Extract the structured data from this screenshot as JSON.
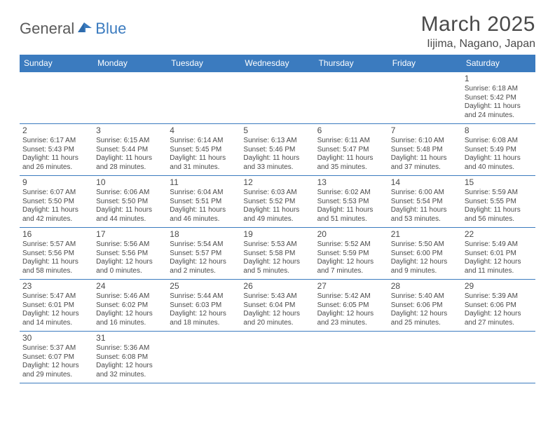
{
  "logo": {
    "text1": "General",
    "text2": "Blue"
  },
  "title": "March 2025",
  "location": "Iijima, Nagano, Japan",
  "colors": {
    "header_bg": "#3b7bbf",
    "header_fg": "#ffffff",
    "border": "#3b7bbf",
    "text": "#4a4a4a",
    "bg": "#ffffff"
  },
  "fonts": {
    "title_size": 30,
    "location_size": 16,
    "dayhead_size": 12,
    "daynum_size": 12,
    "cell_size": 10
  },
  "columns": [
    "Sunday",
    "Monday",
    "Tuesday",
    "Wednesday",
    "Thursday",
    "Friday",
    "Saturday"
  ],
  "weeks": [
    [
      null,
      null,
      null,
      null,
      null,
      null,
      {
        "n": "1",
        "sunrise": "6:18 AM",
        "sunset": "5:42 PM",
        "dl": "11 hours and 24 minutes."
      }
    ],
    [
      {
        "n": "2",
        "sunrise": "6:17 AM",
        "sunset": "5:43 PM",
        "dl": "11 hours and 26 minutes."
      },
      {
        "n": "3",
        "sunrise": "6:15 AM",
        "sunset": "5:44 PM",
        "dl": "11 hours and 28 minutes."
      },
      {
        "n": "4",
        "sunrise": "6:14 AM",
        "sunset": "5:45 PM",
        "dl": "11 hours and 31 minutes."
      },
      {
        "n": "5",
        "sunrise": "6:13 AM",
        "sunset": "5:46 PM",
        "dl": "11 hours and 33 minutes."
      },
      {
        "n": "6",
        "sunrise": "6:11 AM",
        "sunset": "5:47 PM",
        "dl": "11 hours and 35 minutes."
      },
      {
        "n": "7",
        "sunrise": "6:10 AM",
        "sunset": "5:48 PM",
        "dl": "11 hours and 37 minutes."
      },
      {
        "n": "8",
        "sunrise": "6:08 AM",
        "sunset": "5:49 PM",
        "dl": "11 hours and 40 minutes."
      }
    ],
    [
      {
        "n": "9",
        "sunrise": "6:07 AM",
        "sunset": "5:50 PM",
        "dl": "11 hours and 42 minutes."
      },
      {
        "n": "10",
        "sunrise": "6:06 AM",
        "sunset": "5:50 PM",
        "dl": "11 hours and 44 minutes."
      },
      {
        "n": "11",
        "sunrise": "6:04 AM",
        "sunset": "5:51 PM",
        "dl": "11 hours and 46 minutes."
      },
      {
        "n": "12",
        "sunrise": "6:03 AM",
        "sunset": "5:52 PM",
        "dl": "11 hours and 49 minutes."
      },
      {
        "n": "13",
        "sunrise": "6:02 AM",
        "sunset": "5:53 PM",
        "dl": "11 hours and 51 minutes."
      },
      {
        "n": "14",
        "sunrise": "6:00 AM",
        "sunset": "5:54 PM",
        "dl": "11 hours and 53 minutes."
      },
      {
        "n": "15",
        "sunrise": "5:59 AM",
        "sunset": "5:55 PM",
        "dl": "11 hours and 56 minutes."
      }
    ],
    [
      {
        "n": "16",
        "sunrise": "5:57 AM",
        "sunset": "5:56 PM",
        "dl": "11 hours and 58 minutes."
      },
      {
        "n": "17",
        "sunrise": "5:56 AM",
        "sunset": "5:56 PM",
        "dl": "12 hours and 0 minutes."
      },
      {
        "n": "18",
        "sunrise": "5:54 AM",
        "sunset": "5:57 PM",
        "dl": "12 hours and 2 minutes."
      },
      {
        "n": "19",
        "sunrise": "5:53 AM",
        "sunset": "5:58 PM",
        "dl": "12 hours and 5 minutes."
      },
      {
        "n": "20",
        "sunrise": "5:52 AM",
        "sunset": "5:59 PM",
        "dl": "12 hours and 7 minutes."
      },
      {
        "n": "21",
        "sunrise": "5:50 AM",
        "sunset": "6:00 PM",
        "dl": "12 hours and 9 minutes."
      },
      {
        "n": "22",
        "sunrise": "5:49 AM",
        "sunset": "6:01 PM",
        "dl": "12 hours and 11 minutes."
      }
    ],
    [
      {
        "n": "23",
        "sunrise": "5:47 AM",
        "sunset": "6:01 PM",
        "dl": "12 hours and 14 minutes."
      },
      {
        "n": "24",
        "sunrise": "5:46 AM",
        "sunset": "6:02 PM",
        "dl": "12 hours and 16 minutes."
      },
      {
        "n": "25",
        "sunrise": "5:44 AM",
        "sunset": "6:03 PM",
        "dl": "12 hours and 18 minutes."
      },
      {
        "n": "26",
        "sunrise": "5:43 AM",
        "sunset": "6:04 PM",
        "dl": "12 hours and 20 minutes."
      },
      {
        "n": "27",
        "sunrise": "5:42 AM",
        "sunset": "6:05 PM",
        "dl": "12 hours and 23 minutes."
      },
      {
        "n": "28",
        "sunrise": "5:40 AM",
        "sunset": "6:06 PM",
        "dl": "12 hours and 25 minutes."
      },
      {
        "n": "29",
        "sunrise": "5:39 AM",
        "sunset": "6:06 PM",
        "dl": "12 hours and 27 minutes."
      }
    ],
    [
      {
        "n": "30",
        "sunrise": "5:37 AM",
        "sunset": "6:07 PM",
        "dl": "12 hours and 29 minutes."
      },
      {
        "n": "31",
        "sunrise": "5:36 AM",
        "sunset": "6:08 PM",
        "dl": "12 hours and 32 minutes."
      },
      null,
      null,
      null,
      null,
      null
    ]
  ],
  "labels": {
    "sunrise": "Sunrise:",
    "sunset": "Sunset:",
    "daylight": "Daylight:"
  }
}
